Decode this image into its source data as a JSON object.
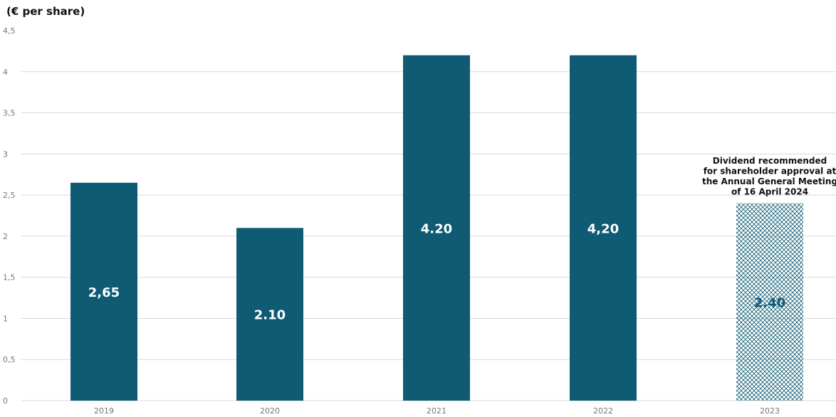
{
  "chart_data": {
    "type": "bar",
    "unit_label": "(€ per share)",
    "title": "",
    "xlabel": "",
    "ylabel": "",
    "ylim": [
      0,
      4.5
    ],
    "y_ticks": [
      {
        "value": 0,
        "label": "0"
      },
      {
        "value": 0.5,
        "label": "0,5"
      },
      {
        "value": 1,
        "label": "1"
      },
      {
        "value": 1.5,
        "label": "1,5"
      },
      {
        "value": 2,
        "label": "2"
      },
      {
        "value": 2.5,
        "label": "2,5"
      },
      {
        "value": 3,
        "label": "3"
      },
      {
        "value": 3.5,
        "label": "3,5"
      },
      {
        "value": 4,
        "label": "4"
      },
      {
        "value": 4.5,
        "label": "4,5"
      }
    ],
    "grid": true,
    "categories": [
      "2019",
      "2020",
      "2021",
      "2022",
      "2023"
    ],
    "values": [
      2.65,
      2.1,
      4.2,
      4.2,
      2.4
    ],
    "data_labels": [
      "2,65",
      "2.10",
      "4.20",
      "4,20",
      "2.40"
    ],
    "bar_styles": [
      "solid",
      "solid",
      "solid",
      "solid",
      "hatched"
    ],
    "annotation": {
      "category": "2023",
      "lines": [
        "Dividend recommended",
        "for shareholder approval at",
        "the Annual General Meeting",
        "of 16 April 2024"
      ]
    },
    "colors": {
      "bar": "#0e5b73",
      "label_on_solid": "#ffffff",
      "label_on_hatched": "#0e5b73",
      "grid": "#d9d9d9",
      "axis_text": "#777777"
    }
  }
}
